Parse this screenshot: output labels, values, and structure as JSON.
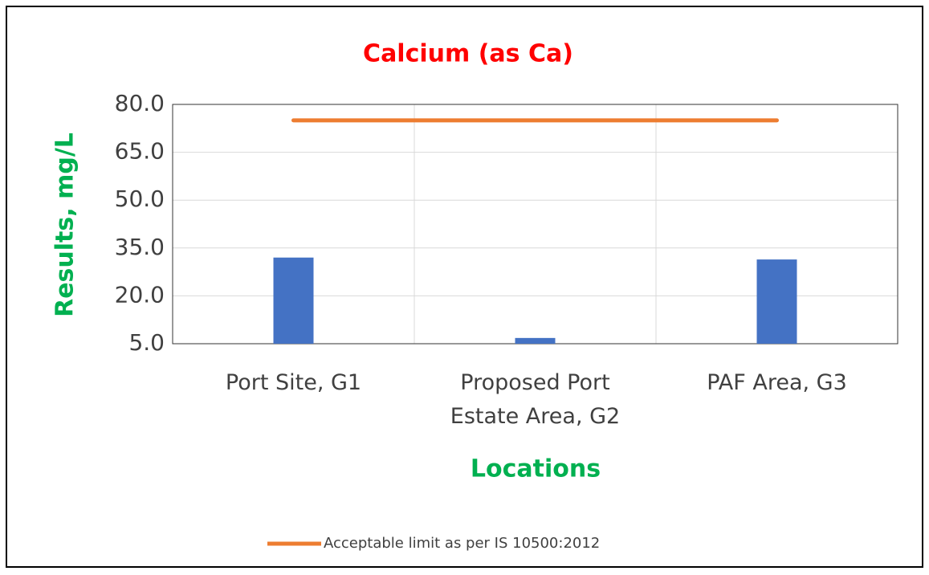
{
  "chart_data": {
    "type": "bar",
    "title": "Calcium (as Ca)",
    "x_label": "Locations",
    "y_label": "Results, mg/L",
    "categories": [
      "Port Site, G1",
      "Proposed Port Estate Area, G2",
      "PAF Area, G3"
    ],
    "series": [
      {
        "type": "bar",
        "color": "#4472c4",
        "values": [
          32,
          6.8,
          31.4
        ]
      },
      {
        "type": "line",
        "name": "Acceptable limit as per IS 10500:2012",
        "color": "#ed7d31",
        "values": [
          75,
          75,
          75
        ]
      }
    ],
    "ylim": [
      5,
      80
    ],
    "yticks": [
      {
        "value": 5,
        "label": "5.0"
      },
      {
        "value": 20,
        "label": "20.0"
      },
      {
        "value": 35,
        "label": "35.0"
      },
      {
        "value": 50,
        "label": "50.0"
      },
      {
        "value": 65,
        "label": "65.0"
      },
      {
        "value": 80,
        "label": "80.0"
      }
    ],
    "grid": true,
    "legend": "bottom"
  }
}
